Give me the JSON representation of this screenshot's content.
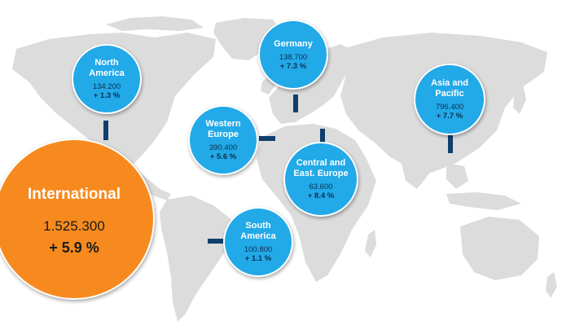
{
  "map": {
    "land_color": "#dcdcdc",
    "water_color": "#ffffff",
    "connector_color": "#0e3f6d"
  },
  "international": {
    "label": "International",
    "value": "1.525.300",
    "growth": "+ 5.9 %",
    "color": "#f68a1e"
  },
  "regions": [
    {
      "name": "North\nAmerica",
      "value": "134.200",
      "growth": "+ 1.3 %"
    },
    {
      "name": "Germany",
      "value": "138.700",
      "growth": "+ 7.3 %"
    },
    {
      "name": "Asia and\nPacific",
      "value": "796.400",
      "growth": "+ 7.7 %"
    },
    {
      "name": "Western\nEurope",
      "value": "390.400",
      "growth": "+ 5.6 %"
    },
    {
      "name": "Central and\nEast. Europe",
      "value": "63.600",
      "growth": "+ 8.4 %"
    },
    {
      "name": "South\nAmerica",
      "value": "100.800",
      "growth": "+ 1.1 %"
    }
  ],
  "bubble_color": "#22a9e8"
}
